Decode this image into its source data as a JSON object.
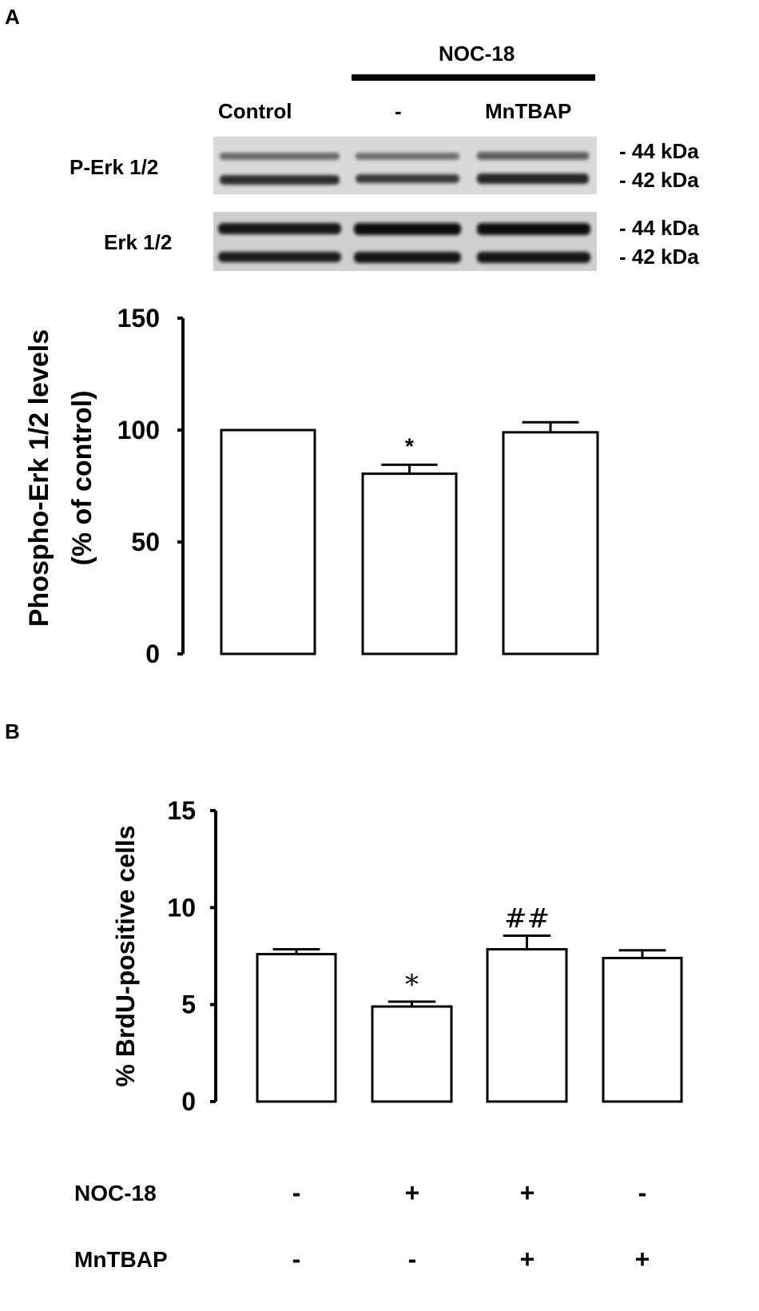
{
  "panel_a": {
    "label": "A",
    "noc_header": "NOC-18",
    "lane_labels": [
      "Control",
      "-",
      "MnTBAP"
    ],
    "blot_rows": [
      {
        "label": "P-Erk 1/2",
        "markers": [
          "- 44  kDa",
          "- 42  kDa"
        ]
      },
      {
        "label": "Erk 1/2",
        "markers": [
          "- 44  kDa",
          "- 42  kDa"
        ]
      }
    ]
  },
  "panel_b": {
    "label": "B",
    "treatment_rows": [
      {
        "label": "NOC-18",
        "signs": [
          "-",
          "+",
          "+",
          "-"
        ]
      },
      {
        "label": "MnTBAP",
        "signs": [
          "-",
          "-",
          "+",
          "+"
        ]
      }
    ]
  },
  "chart_data": [
    {
      "type": "bar",
      "ylabel": "Phospho-Erk 1/2 levels\n(% of control)",
      "ylabel_lines": [
        "Phospho-Erk 1/2 levels",
        "(% of control)"
      ],
      "ylim": [
        0,
        150
      ],
      "yticks": [
        0,
        50,
        100,
        150
      ],
      "categories": [
        "Control",
        "NOC-18",
        "NOC-18 + MnTBAP"
      ],
      "values": [
        100,
        80.5,
        99
      ],
      "errors": [
        0,
        4,
        4.5
      ],
      "annotations": [
        "",
        "*",
        ""
      ]
    },
    {
      "type": "bar",
      "ylabel": "% BrdU-positive cells",
      "ylim": [
        0,
        15
      ],
      "yticks": [
        0,
        5,
        10,
        15
      ],
      "categories": [
        "-/-",
        "+/-",
        "+/+",
        "-/+"
      ],
      "values": [
        7.6,
        4.9,
        7.85,
        7.4
      ],
      "errors": [
        0.25,
        0.25,
        0.7,
        0.4
      ],
      "annotations": [
        "",
        "*",
        "##",
        ""
      ]
    }
  ]
}
